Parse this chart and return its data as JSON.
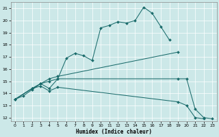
{
  "xlabel": "Humidex (Indice chaleur)",
  "bg_color": "#cce8e8",
  "line_color": "#1a6b6b",
  "grid_color": "#ffffff",
  "xlim": [
    -0.5,
    23.5
  ],
  "ylim": [
    11.7,
    21.5
  ],
  "xticks": [
    0,
    1,
    2,
    3,
    4,
    5,
    6,
    7,
    8,
    9,
    10,
    11,
    12,
    13,
    14,
    15,
    16,
    17,
    18,
    19,
    20,
    21,
    22,
    23
  ],
  "yticks": [
    12,
    13,
    14,
    15,
    16,
    17,
    18,
    19,
    20,
    21
  ],
  "line1_x": [
    0,
    1,
    2,
    3,
    4,
    5,
    6,
    7,
    8,
    9,
    10,
    11,
    12,
    13,
    14,
    15,
    16,
    17,
    18
  ],
  "line1_y": [
    13.5,
    13.8,
    14.3,
    14.8,
    14.4,
    15.2,
    16.9,
    17.3,
    17.1,
    16.7,
    19.4,
    19.6,
    19.9,
    19.8,
    20.0,
    21.1,
    20.6,
    19.5,
    18.4
  ],
  "line2_x": [
    0,
    2,
    3,
    4,
    5,
    19
  ],
  "line2_y": [
    13.5,
    14.4,
    14.8,
    15.2,
    15.4,
    17.4
  ],
  "line3_x": [
    0,
    2,
    3,
    4,
    5,
    19,
    20,
    21,
    22,
    23
  ],
  "line3_y": [
    13.5,
    14.4,
    14.8,
    15.0,
    15.2,
    15.2,
    15.2,
    12.7,
    12.0,
    11.9
  ],
  "line4_x": [
    0,
    2,
    3,
    4,
    5,
    19,
    20,
    21,
    22,
    23
  ],
  "line4_y": [
    13.5,
    14.4,
    14.6,
    14.2,
    14.5,
    13.3,
    13.0,
    12.0,
    11.9,
    11.9
  ]
}
